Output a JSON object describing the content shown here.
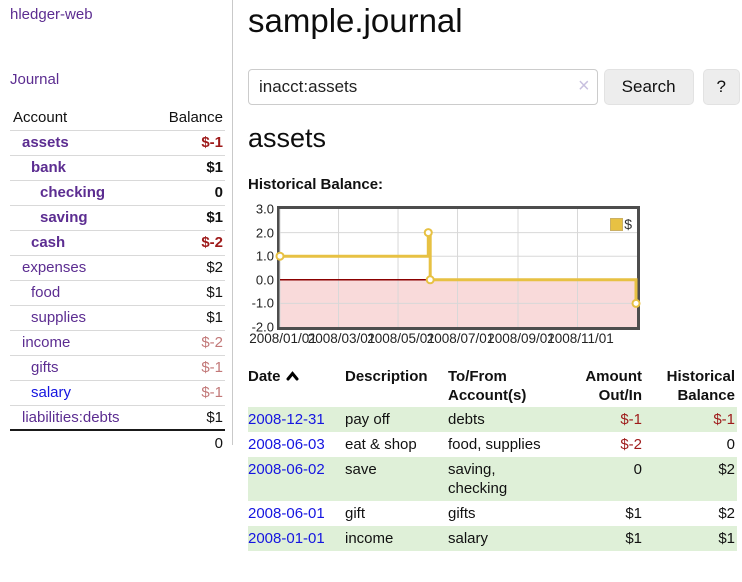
{
  "sidebar": {
    "app_title": "hledger-web",
    "nav_journal": "Journal",
    "accounts_table": {
      "headers": [
        "Account",
        "Balance"
      ],
      "rows": [
        {
          "name": "assets",
          "level": 1,
          "bold": true,
          "balance": "$-1",
          "neg": "strong"
        },
        {
          "name": "bank",
          "level": 2,
          "bold": true,
          "balance": "$1"
        },
        {
          "name": "checking",
          "level": 3,
          "bold": true,
          "balance": "0"
        },
        {
          "name": "saving",
          "level": 3,
          "bold": true,
          "balance": "$1"
        },
        {
          "name": "cash",
          "level": 2,
          "bold": true,
          "balance": "$-2",
          "neg": "strong"
        },
        {
          "name": "expenses",
          "level": 1,
          "bold": false,
          "balance": "$2"
        },
        {
          "name": "food",
          "level": 2,
          "bold": false,
          "balance": "$1"
        },
        {
          "name": "supplies",
          "level": 2,
          "bold": false,
          "balance": "$1"
        },
        {
          "name": "income",
          "level": 1,
          "bold": false,
          "balance": "$-2",
          "neg": "muted"
        },
        {
          "name": "gifts",
          "level": 2,
          "bold": false,
          "balance": "$-1",
          "neg": "muted"
        },
        {
          "name": "salary",
          "level": 2,
          "bold": false,
          "balance": "$-1",
          "neg": "muted",
          "link_color": "blue"
        },
        {
          "name": "liabilities:debts",
          "level": 1,
          "bold": false,
          "balance": "$1"
        }
      ],
      "total": "0"
    }
  },
  "header": {
    "title": "sample.journal"
  },
  "search": {
    "value": "inacct:assets",
    "clear_icon": "×",
    "button_label": "Search",
    "help_label": "?"
  },
  "account_page": {
    "title": "assets",
    "chart_label": "Historical Balance:"
  },
  "chart_data": {
    "type": "line",
    "title": "Historical Balance:",
    "legend": [
      {
        "label": "$",
        "color": "#e7c143"
      }
    ],
    "x_range": [
      "2008-01-01",
      "2009-01-01"
    ],
    "ylim": [
      -2,
      3
    ],
    "yticks": [
      3,
      2,
      1,
      0,
      -1,
      -2
    ],
    "xticks": [
      "2008/01/01",
      "2008/03/01",
      "2008/05/01",
      "2008/07/01",
      "2008/09/01",
      "2008/11/01"
    ],
    "grid": true,
    "legend_position": "top-right",
    "series": [
      {
        "name": "$",
        "step": true,
        "points": [
          [
            "2008-01-01",
            1
          ],
          [
            "2008-06-01",
            2
          ],
          [
            "2008-06-03",
            0
          ],
          [
            "2008-12-31",
            -1
          ]
        ]
      }
    ],
    "colors": {
      "line": "#e7c143",
      "marker_fill": "#ffffff",
      "negative_region": "#f9dada",
      "zero_line": "#8b0000",
      "grid": "#d8d8d8",
      "border": "#4d4d4d"
    }
  },
  "register": {
    "columns": [
      "Date",
      "Description",
      "To/From Account(s)",
      "Amount Out/In",
      "Historical Balance"
    ],
    "rows": [
      {
        "date": "2008-12-31",
        "description": "pay off",
        "accounts": "debts",
        "amount": "$-1",
        "balance": "$-1"
      },
      {
        "date": "2008-06-03",
        "description": "eat & shop",
        "accounts": "food, supplies",
        "amount": "$-2",
        "balance": "0"
      },
      {
        "date": "2008-06-02",
        "description": "save",
        "accounts": "saving, checking",
        "amount": "0",
        "balance": "$2"
      },
      {
        "date": "2008-06-01",
        "description": "gift",
        "accounts": "gifts",
        "amount": "$1",
        "balance": "$2"
      },
      {
        "date": "2008-01-01",
        "description": "income",
        "accounts": "salary",
        "amount": "$1",
        "balance": "$1"
      }
    ]
  }
}
